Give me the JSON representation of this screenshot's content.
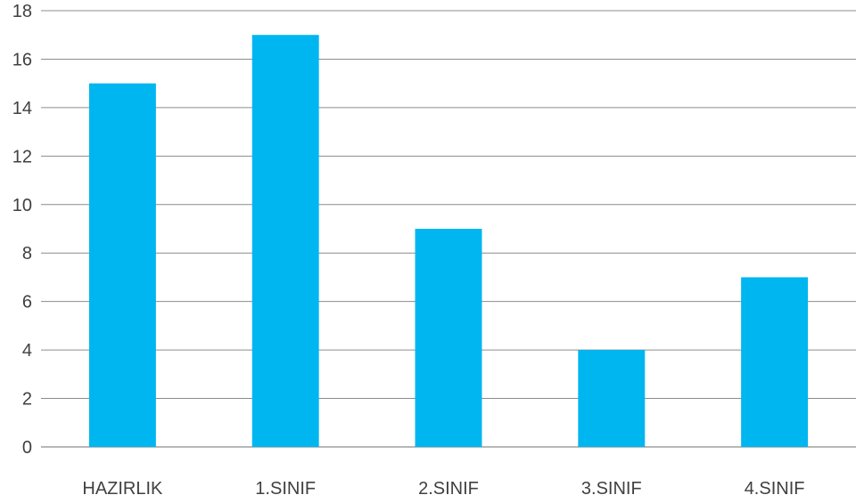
{
  "chart_data": {
    "type": "bar",
    "title": "",
    "xlabel": "",
    "ylabel": "",
    "categories": [
      "HAZIRLIK",
      "1.SINIF",
      "2.SINIF",
      "3.SINIF",
      "4.SINIF"
    ],
    "values": [
      15,
      17,
      9,
      4,
      7
    ],
    "ylim": [
      0,
      18
    ],
    "yticks": [
      "0",
      "2",
      "4",
      "6",
      "8",
      "10",
      "12",
      "14",
      "16",
      "18"
    ],
    "grid": true,
    "legend": "none",
    "bar_color": "#00B6F0"
  }
}
